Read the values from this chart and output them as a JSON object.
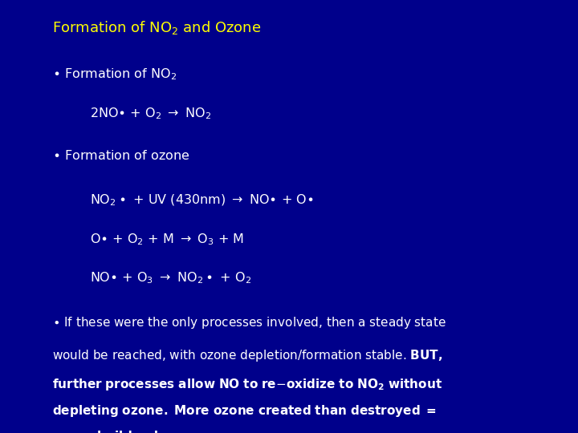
{
  "bg_color": "#00008B",
  "title_color": "#FFFF00",
  "text_color": "#FFFFFF",
  "figsize": [
    7.2,
    5.4
  ],
  "dpi": 100,
  "title_fontsize": 13,
  "body_fontsize": 11.5,
  "para_fontsize": 11.0
}
